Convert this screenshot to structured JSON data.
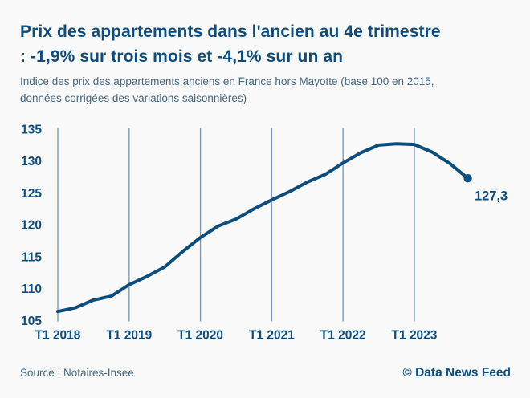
{
  "header": {
    "title_lines": [
      "Prix des appartements dans l'ancien au 4e trimestre",
      ": -1,9% sur trois mois et -4,1% sur un an"
    ],
    "subtitle_lines": [
      "Indice des prix des appartements anciens en France hors Mayotte (base 100 en 2015,",
      "données corrigées des variations saisonnières)"
    ]
  },
  "chart_data": {
    "type": "line",
    "title": "Prix des appartements dans l'ancien au 4e trimestre : -1,9% sur trois mois et -4,1% sur un an",
    "xlabel": "",
    "ylabel": "",
    "categories": [
      "T1 2018",
      "T2 2018",
      "T3 2018",
      "T4 2018",
      "T1 2019",
      "T2 2019",
      "T3 2019",
      "T4 2019",
      "T1 2020",
      "T2 2020",
      "T3 2020",
      "T4 2020",
      "T1 2021",
      "T2 2021",
      "T3 2021",
      "T4 2021",
      "T1 2022",
      "T2 2022",
      "T3 2022",
      "T4 2022",
      "T1 2023",
      "T2 2023",
      "T3 2023",
      "T4 2023"
    ],
    "values": [
      106.4,
      107.0,
      108.2,
      108.8,
      110.6,
      111.9,
      113.4,
      115.8,
      118.0,
      119.8,
      120.9,
      122.5,
      123.9,
      125.2,
      126.7,
      127.9,
      129.7,
      131.3,
      132.5,
      132.7,
      132.6,
      131.4,
      129.6,
      127.3
    ],
    "xtick_labels": [
      "T1 2018",
      "T1 2019",
      "T1 2020",
      "T1 2021",
      "T1 2022",
      "T1 2023"
    ],
    "xtick_indices": [
      0,
      4,
      8,
      12,
      16,
      20
    ],
    "yticks": [
      135,
      130,
      125,
      120,
      115,
      110,
      105
    ],
    "ylim": [
      105,
      135
    ],
    "grid": "vertical-only",
    "legend": "none",
    "end_point_label": "127,3",
    "end_point_value": 127.3,
    "line_color": "#0d4d7d",
    "gridline_color": "#7d9cbb"
  },
  "footer": {
    "source": "Source : Notaires-Insee",
    "credit": "© Data News Feed"
  },
  "colors": {
    "accent": "#0d4d7d",
    "muted_text": "#47687f",
    "background": "#f9f9f9"
  }
}
